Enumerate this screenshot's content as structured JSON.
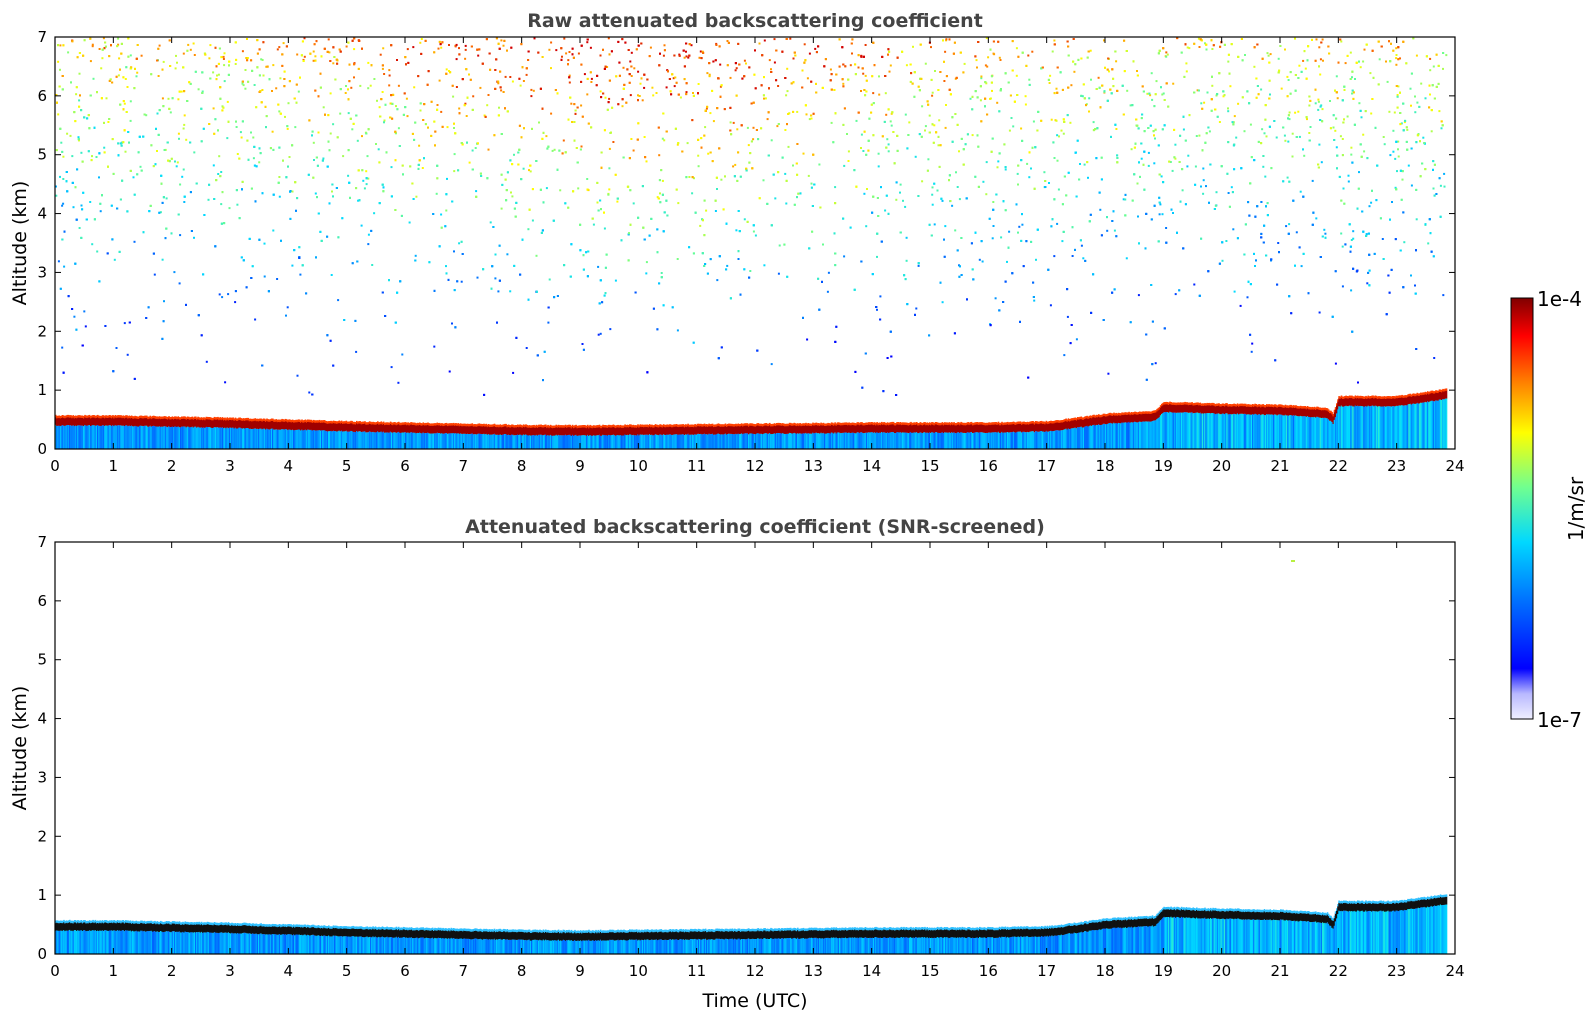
{
  "chart_data": [
    {
      "type": "heatmap",
      "title": "Raw attenuated backscattering coefficient",
      "xlabel": "",
      "ylabel": "Altitude (km)",
      "xlim": [
        0,
        24
      ],
      "ylim": [
        0,
        7
      ],
      "xticks": [
        "0",
        "1",
        "2",
        "3",
        "4",
        "5",
        "6",
        "7",
        "8",
        "9",
        "10",
        "11",
        "12",
        "13",
        "14",
        "15",
        "16",
        "17",
        "18",
        "19",
        "20",
        "21",
        "22",
        "23",
        "24"
      ],
      "yticks": [
        "0",
        "1",
        "2",
        "3",
        "4",
        "5",
        "6",
        "7"
      ],
      "data_end_time": 23.85,
      "noise": "present",
      "boundary_layer_top_km": {
        "time": [
          0,
          1,
          2,
          3,
          4,
          5,
          6,
          7,
          8,
          9,
          10,
          11,
          12,
          13,
          14,
          15,
          16,
          17,
          17.5,
          18,
          18.5,
          18.85,
          19,
          20,
          21,
          21.8,
          21.9,
          22,
          23,
          23.85
        ],
        "height": [
          0.52,
          0.52,
          0.5,
          0.48,
          0.45,
          0.42,
          0.4,
          0.38,
          0.36,
          0.35,
          0.36,
          0.37,
          0.38,
          0.39,
          0.4,
          0.4,
          0.4,
          0.42,
          0.48,
          0.55,
          0.58,
          0.6,
          0.75,
          0.72,
          0.7,
          0.65,
          0.55,
          0.85,
          0.85,
          0.97
        ]
      }
    },
    {
      "type": "heatmap",
      "title": "Attenuated backscattering coefficient (SNR-screened)",
      "xlabel": "Time (UTC)",
      "ylabel": "Altitude (km)",
      "xlim": [
        0,
        24
      ],
      "ylim": [
        0,
        7
      ],
      "xticks": [
        "0",
        "1",
        "2",
        "3",
        "4",
        "5",
        "6",
        "7",
        "8",
        "9",
        "10",
        "11",
        "12",
        "13",
        "14",
        "15",
        "16",
        "17",
        "18",
        "19",
        "20",
        "21",
        "22",
        "23",
        "24"
      ],
      "yticks": [
        "0",
        "1",
        "2",
        "3",
        "4",
        "5",
        "6",
        "7"
      ],
      "data_end_time": 23.85,
      "noise": "screened",
      "boundary_layer_top_km": {
        "time": [
          0,
          1,
          2,
          3,
          4,
          5,
          6,
          7,
          8,
          9,
          10,
          11,
          12,
          13,
          14,
          15,
          16,
          17,
          17.5,
          18,
          18.5,
          18.85,
          19,
          20,
          21,
          21.8,
          21.9,
          22,
          23,
          23.85
        ],
        "height": [
          0.52,
          0.52,
          0.5,
          0.48,
          0.45,
          0.42,
          0.4,
          0.38,
          0.36,
          0.35,
          0.36,
          0.37,
          0.38,
          0.39,
          0.4,
          0.4,
          0.4,
          0.42,
          0.48,
          0.55,
          0.58,
          0.6,
          0.75,
          0.72,
          0.7,
          0.65,
          0.55,
          0.85,
          0.85,
          0.97
        ]
      }
    }
  ],
  "colorbar": {
    "max_label": "1e-4",
    "min_label": "1e-7",
    "unit_label": "1/m/sr",
    "colors": [
      "#ffffff",
      "#d0d0ff",
      "#0000ff",
      "#0080ff",
      "#00e0ff",
      "#60ff90",
      "#ffff00",
      "#ff8000",
      "#ff0000",
      "#800000"
    ]
  }
}
